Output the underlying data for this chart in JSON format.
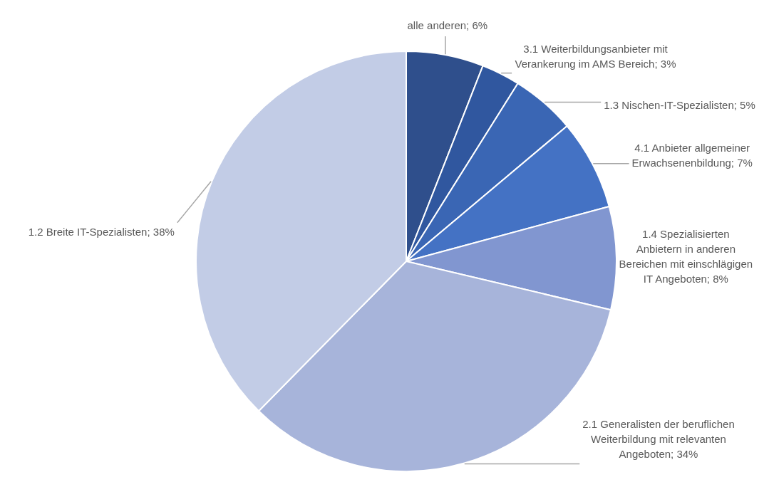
{
  "chart_data": {
    "type": "pie",
    "categories": [
      "alle anderen",
      "3.1 Weiterbildungsanbieter mit Verankerung im AMS Bereich",
      "1.3 Nischen-IT-Spezialisten",
      "4.1 Anbieter allgemeiner Erwachsenenbildung",
      "1.4 Spezialisierten Anbietern in anderen Bereichen mit einschlägigen IT Angeboten",
      "2.1 Generalisten der beruflichen Weiterbildung mit relevanten Angeboten",
      "1.2 Breite IT-Spezialisten"
    ],
    "values": [
      6,
      3,
      5,
      7,
      8,
      34,
      38
    ],
    "value_labels": [
      "6%",
      "3%",
      "5%",
      "7%",
      "8%",
      "34%",
      "38%"
    ],
    "colors": [
      "#2f4f8c",
      "#30579f",
      "#3a66b4",
      "#4472c4",
      "#8196d0",
      "#a7b4da",
      "#c2cce6"
    ]
  }
}
